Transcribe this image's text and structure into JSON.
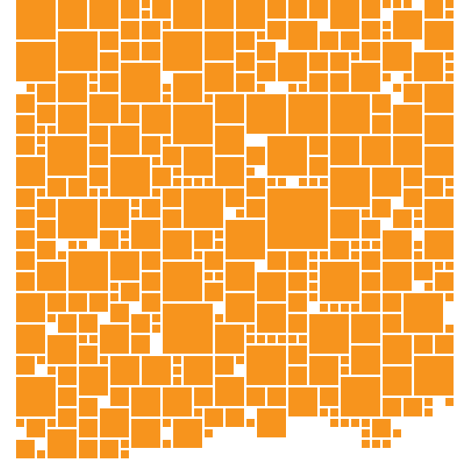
{
  "artwork": {
    "colors": {
      "background": "#ffffff",
      "tile": "#f7941d"
    }
  }
}
